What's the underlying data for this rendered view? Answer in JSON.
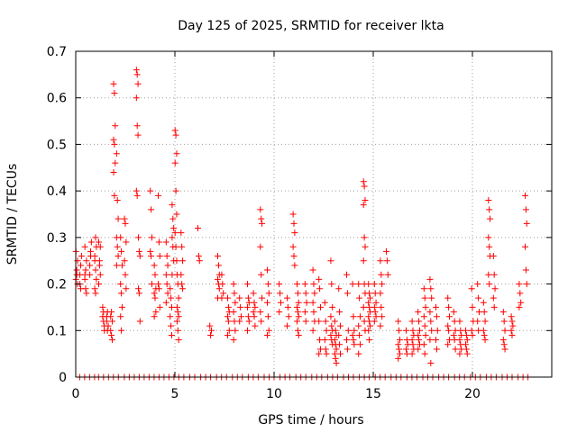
{
  "chart_data": {
    "type": "scatter",
    "title": "Day 125 of 2025, SRMTID for receiver lkta",
    "xlabel": "GPS time / hours",
    "ylabel": "SRMTID / TECUs",
    "xlim": [
      0,
      24
    ],
    "ylim": [
      0,
      0.7
    ],
    "xticks": [
      0,
      5,
      10,
      15,
      20
    ],
    "xtick_labels": [
      "0",
      "5",
      "10",
      "15",
      "20"
    ],
    "yticks": [
      0,
      0.1,
      0.2,
      0.3,
      0.4,
      0.5,
      0.6,
      0.7
    ],
    "ytick_labels": [
      "0",
      "0.1",
      "0.2",
      "0.3",
      "0.4",
      "0.5",
      "0.6",
      "0.7"
    ],
    "grid": true,
    "marker": "+",
    "color": "#ff0000",
    "x_range_hours": [
      0,
      23
    ],
    "series": [
      {
        "name": "SRMTID",
        "clusters": [
          {
            "x": 0.05,
            "y": [
              0.21,
              0.22,
              0.25,
              0.27,
              0.23,
              0.2
            ]
          },
          {
            "x": 0.25,
            "y": [
              0.22,
              0.24,
              0.26,
              0.2,
              0.19
            ]
          },
          {
            "x": 0.5,
            "y": [
              0.21,
              0.23,
              0.25,
              0.28,
              0.19,
              0.18,
              0.22
            ]
          },
          {
            "x": 0.75,
            "y": [
              0.24,
              0.27,
              0.29,
              0.22,
              0.26
            ]
          },
          {
            "x": 1.0,
            "y": [
              0.26,
              0.3,
              0.28,
              0.25,
              0.23,
              0.21,
              0.19,
              0.18
            ]
          },
          {
            "x": 1.2,
            "y": [
              0.2,
              0.24,
              0.28,
              0.29,
              0.25,
              0.22
            ]
          },
          {
            "x": 1.4,
            "y": [
              0.13,
              0.12,
              0.11,
              0.15,
              0.14,
              0.1
            ]
          },
          {
            "x": 1.6,
            "y": [
              0.12,
              0.14,
              0.11,
              0.13,
              0.1
            ]
          },
          {
            "x": 1.8,
            "y": [
              0.1,
              0.09,
              0.12,
              0.13,
              0.14,
              0.08
            ]
          },
          {
            "x": 1.95,
            "y": [
              0.63,
              0.61,
              0.54,
              0.51,
              0.5,
              0.46,
              0.44,
              0.39
            ]
          },
          {
            "x": 2.1,
            "y": [
              0.48,
              0.38,
              0.34,
              0.3,
              0.28,
              0.26,
              0.24
            ]
          },
          {
            "x": 2.3,
            "y": [
              0.3,
              0.27,
              0.24,
              0.2,
              0.18,
              0.15,
              0.13,
              0.1
            ]
          },
          {
            "x": 2.5,
            "y": [
              0.34,
              0.33,
              0.29,
              0.25,
              0.22,
              0.19
            ]
          },
          {
            "x": 3.1,
            "y": [
              0.66,
              0.65,
              0.63,
              0.6,
              0.54,
              0.52,
              0.4,
              0.39
            ]
          },
          {
            "x": 3.2,
            "y": [
              0.3,
              0.27,
              0.26,
              0.19,
              0.18,
              0.12
            ]
          },
          {
            "x": 3.8,
            "y": [
              0.4,
              0.36,
              0.3,
              0.27,
              0.26,
              0.2
            ]
          },
          {
            "x": 4.0,
            "y": [
              0.24,
              0.22,
              0.19,
              0.18,
              0.17,
              0.14,
              0.13
            ]
          },
          {
            "x": 4.2,
            "y": [
              0.39,
              0.29,
              0.26,
              0.2,
              0.19,
              0.15
            ]
          },
          {
            "x": 4.6,
            "y": [
              0.29,
              0.26,
              0.24,
              0.22,
              0.2,
              0.18,
              0.16
            ]
          },
          {
            "x": 4.8,
            "y": [
              0.19,
              0.17,
              0.15,
              0.13,
              0.11,
              0.09
            ]
          },
          {
            "x": 4.9,
            "y": [
              0.37,
              0.34,
              0.32,
              0.3,
              0.28,
              0.25,
              0.22
            ]
          },
          {
            "x": 5.05,
            "y": [
              0.53,
              0.52,
              0.48,
              0.46,
              0.4,
              0.35,
              0.31,
              0.28,
              0.25
            ]
          },
          {
            "x": 5.15,
            "y": [
              0.22,
              0.2,
              0.17,
              0.15,
              0.14,
              0.13,
              0.12,
              0.1,
              0.08
            ]
          },
          {
            "x": 5.35,
            "y": [
              0.31,
              0.28,
              0.25,
              0.22,
              0.2,
              0.19
            ]
          },
          {
            "x": 6.2,
            "y": [
              0.32,
              0.26,
              0.25
            ]
          },
          {
            "x": 6.8,
            "y": [
              0.11,
              0.09,
              0.1
            ]
          },
          {
            "x": 7.2,
            "y": [
              0.26,
              0.24,
              0.22,
              0.21,
              0.2,
              0.19,
              0.17
            ]
          },
          {
            "x": 7.4,
            "y": [
              0.22,
              0.2,
              0.18,
              0.17
            ]
          },
          {
            "x": 7.7,
            "y": [
              0.17,
              0.15,
              0.14,
              0.13,
              0.12,
              0.1,
              0.09
            ]
          },
          {
            "x": 8.0,
            "y": [
              0.2,
              0.18,
              0.16,
              0.14,
              0.12,
              0.1,
              0.08
            ]
          },
          {
            "x": 8.3,
            "y": [
              0.17,
              0.15,
              0.13,
              0.12
            ]
          },
          {
            "x": 8.7,
            "y": [
              0.2,
              0.17,
              0.16,
              0.15,
              0.13,
              0.12,
              0.1
            ]
          },
          {
            "x": 9.0,
            "y": [
              0.18,
              0.16,
              0.15,
              0.14,
              0.13,
              0.11
            ]
          },
          {
            "x": 9.35,
            "y": [
              0.36,
              0.34,
              0.33,
              0.28,
              0.22,
              0.17,
              0.14,
              0.12
            ]
          },
          {
            "x": 9.7,
            "y": [
              0.23,
              0.2,
              0.18,
              0.16,
              0.13,
              0.1,
              0.09
            ]
          },
          {
            "x": 10.3,
            "y": [
              0.2,
              0.18,
              0.16,
              0.14
            ]
          },
          {
            "x": 10.7,
            "y": [
              0.17,
              0.15,
              0.13,
              0.11
            ]
          },
          {
            "x": 11.0,
            "y": [
              0.35,
              0.33,
              0.31,
              0.28,
              0.26,
              0.24
            ]
          },
          {
            "x": 11.2,
            "y": [
              0.2,
              0.18,
              0.16,
              0.15,
              0.14,
              0.13,
              0.12,
              0.1,
              0.09
            ]
          },
          {
            "x": 11.6,
            "y": [
              0.2,
              0.18,
              0.16,
              0.14,
              0.12
            ]
          },
          {
            "x": 12.0,
            "y": [
              0.23,
              0.2,
              0.18,
              0.16,
              0.14,
              0.12,
              0.1
            ]
          },
          {
            "x": 12.3,
            "y": [
              0.21,
              0.19,
              0.15,
              0.12,
              0.08,
              0.06,
              0.05
            ]
          },
          {
            "x": 12.6,
            "y": [
              0.16,
              0.12,
              0.1,
              0.08,
              0.06,
              0.05
            ]
          },
          {
            "x": 12.9,
            "y": [
              0.25,
              0.2,
              0.15,
              0.13,
              0.11,
              0.1,
              0.09,
              0.08,
              0.07
            ]
          },
          {
            "x": 13.1,
            "y": [
              0.12,
              0.1,
              0.09,
              0.08,
              0.07,
              0.06,
              0.05,
              0.04,
              0.03
            ]
          },
          {
            "x": 13.3,
            "y": [
              0.19,
              0.14,
              0.11,
              0.09,
              0.07,
              0.05
            ]
          },
          {
            "x": 13.7,
            "y": [
              0.22,
              0.18,
              0.1,
              0.08,
              0.06
            ]
          },
          {
            "x": 14.0,
            "y": [
              0.2,
              0.13,
              0.1,
              0.09,
              0.08,
              0.07
            ]
          },
          {
            "x": 14.3,
            "y": [
              0.2,
              0.17,
              0.13,
              0.11,
              0.09,
              0.07,
              0.05
            ]
          },
          {
            "x": 14.55,
            "y": [
              0.42,
              0.41,
              0.38,
              0.37,
              0.3,
              0.28,
              0.25,
              0.2,
              0.18,
              0.15,
              0.12,
              0.1
            ]
          },
          {
            "x": 14.8,
            "y": [
              0.2,
              0.18,
              0.17,
              0.16,
              0.15,
              0.14,
              0.13,
              0.12,
              0.11,
              0.1,
              0.08
            ]
          },
          {
            "x": 15.1,
            "y": [
              0.2,
              0.18,
              0.16,
              0.15,
              0.14,
              0.13,
              0.12
            ]
          },
          {
            "x": 15.4,
            "y": [
              0.25,
              0.22,
              0.2,
              0.18,
              0.15,
              0.13,
              0.11
            ]
          },
          {
            "x": 15.7,
            "y": [
              0.27,
              0.25,
              0.22
            ]
          },
          {
            "x": 16.3,
            "y": [
              0.12,
              0.1,
              0.08,
              0.07,
              0.06,
              0.05,
              0.04
            ]
          },
          {
            "x": 16.7,
            "y": [
              0.1,
              0.08,
              0.07,
              0.06,
              0.05
            ]
          },
          {
            "x": 17.0,
            "y": [
              0.12,
              0.1,
              0.09,
              0.08,
              0.07,
              0.06,
              0.05
            ]
          },
          {
            "x": 17.3,
            "y": [
              0.14,
              0.12,
              0.1,
              0.09,
              0.08,
              0.07,
              0.06
            ]
          },
          {
            "x": 17.6,
            "y": [
              0.19,
              0.17,
              0.15,
              0.13,
              0.11,
              0.09,
              0.07,
              0.05
            ]
          },
          {
            "x": 17.9,
            "y": [
              0.21,
              0.19,
              0.17,
              0.14,
              0.12,
              0.1,
              0.08,
              0.03
            ]
          },
          {
            "x": 18.2,
            "y": [
              0.15,
              0.13,
              0.1,
              0.08,
              0.06
            ]
          },
          {
            "x": 18.8,
            "y": [
              0.17,
              0.15,
              0.13,
              0.11,
              0.1,
              0.08,
              0.07
            ]
          },
          {
            "x": 19.1,
            "y": [
              0.14,
              0.12,
              0.1,
              0.09,
              0.08,
              0.06
            ]
          },
          {
            "x": 19.4,
            "y": [
              0.12,
              0.1,
              0.09,
              0.08,
              0.07,
              0.06,
              0.05
            ]
          },
          {
            "x": 19.7,
            "y": [
              0.1,
              0.09,
              0.08,
              0.07,
              0.06,
              0.05
            ]
          },
          {
            "x": 20.0,
            "y": [
              0.19,
              0.15,
              0.12,
              0.1,
              0.09
            ]
          },
          {
            "x": 20.3,
            "y": [
              0.2,
              0.17,
              0.14,
              0.12,
              0.1
            ]
          },
          {
            "x": 20.6,
            "y": [
              0.16,
              0.14,
              0.12,
              0.1,
              0.09,
              0.08
            ]
          },
          {
            "x": 20.85,
            "y": [
              0.38,
              0.36,
              0.34,
              0.3,
              0.28,
              0.26,
              0.22,
              0.2
            ]
          },
          {
            "x": 21.1,
            "y": [
              0.26,
              0.22,
              0.19,
              0.17,
              0.15
            ]
          },
          {
            "x": 21.6,
            "y": [
              0.14,
              0.12,
              0.1,
              0.08,
              0.07,
              0.06
            ]
          },
          {
            "x": 22.0,
            "y": [
              0.13,
              0.12,
              0.11,
              0.1,
              0.09
            ]
          },
          {
            "x": 22.4,
            "y": [
              0.2,
              0.18,
              0.16,
              0.15
            ]
          },
          {
            "x": 22.7,
            "y": [
              0.39,
              0.36,
              0.33,
              0.28,
              0.23,
              0.2
            ]
          }
        ],
        "zero_x": [
          0.2,
          0.45,
          0.7,
          0.95,
          1.15,
          1.4,
          1.65,
          1.9,
          2.15,
          2.45,
          2.7,
          2.95,
          3.2,
          3.45,
          3.7,
          3.95,
          4.2,
          4.45,
          4.7,
          4.95,
          5.2,
          5.45,
          5.75,
          6.0,
          6.3,
          6.55,
          6.8,
          7.1,
          7.35,
          7.6,
          7.9,
          8.15,
          8.4,
          8.7,
          8.95,
          9.2,
          9.5,
          9.75,
          10.0,
          10.3,
          10.55,
          10.8,
          11.1,
          11.35,
          11.6,
          11.9,
          12.15,
          12.4,
          12.7,
          12.95,
          13.2,
          13.5,
          13.75,
          14.0,
          14.3,
          14.55,
          14.8,
          15.1,
          15.35,
          15.6,
          15.9,
          16.15,
          16.4,
          16.7,
          16.95,
          17.2,
          17.5,
          17.75,
          18.0,
          18.3,
          18.55,
          18.8,
          19.1,
          19.35,
          19.6,
          19.9,
          20.15,
          20.4,
          20.7,
          20.95,
          21.2,
          21.5,
          21.75,
          22.0,
          22.3,
          22.55,
          22.8
        ]
      }
    ]
  }
}
